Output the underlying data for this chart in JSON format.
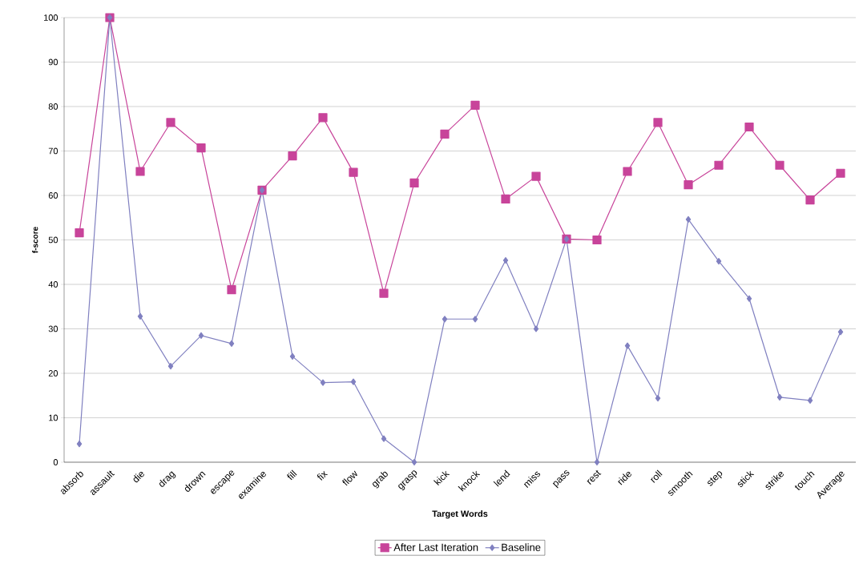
{
  "chart_data": {
    "type": "line",
    "xlabel": "Target Words",
    "ylabel": "f-score",
    "categories": [
      "absorb",
      "assault",
      "die",
      "drag",
      "drown",
      "escape",
      "examine",
      "fill",
      "fix",
      "flow",
      "grab",
      "grasp",
      "kick",
      "knock",
      "lend",
      "miss",
      "pass",
      "rest",
      "ride",
      "roll",
      "smooth",
      "step",
      "stick",
      "strike",
      "touch",
      "Average"
    ],
    "series": [
      {
        "name": "After Last Iteration",
        "color": "#c8449a",
        "marker": "square",
        "values": [
          51.6,
          100,
          65.4,
          76.4,
          70.7,
          38.8,
          61.2,
          68.9,
          77.5,
          65.2,
          38.0,
          62.8,
          73.8,
          80.3,
          59.2,
          64.3,
          50.2,
          50.0,
          65.4,
          76.4,
          62.4,
          66.8,
          75.4,
          66.8,
          59.0,
          65.0
        ]
      },
      {
        "name": "Baseline",
        "color": "#8080c0",
        "marker": "diamond",
        "values": [
          4.1,
          100,
          32.8,
          21.6,
          28.5,
          26.7,
          61.2,
          23.8,
          17.9,
          18.1,
          5.3,
          0,
          32.2,
          32.2,
          45.4,
          30.0,
          50.2,
          0,
          26.2,
          14.4,
          54.6,
          45.2,
          36.8,
          14.6,
          13.9,
          29.3
        ]
      }
    ],
    "ylim": [
      0,
      100
    ],
    "yticks": [
      0,
      10,
      20,
      30,
      40,
      50,
      60,
      70,
      80,
      90,
      100
    ],
    "grid": "y",
    "legend": "bottom",
    "line_style": "solid"
  }
}
